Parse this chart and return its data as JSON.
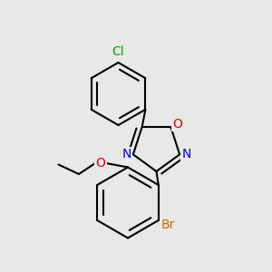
{
  "background_color": "#e8e8e8",
  "bond_color": "#000000",
  "bond_width": 1.5,
  "atom_colors": {
    "Cl": "#00aa00",
    "O": "#dd0000",
    "N": "#0000cc",
    "Br": "#cc6600",
    "C": "#000000"
  },
  "font_size_atoms": 10,
  "figsize": [
    3.0,
    3.0
  ],
  "dpi": 100,
  "xlim": [
    0.0,
    1.0
  ],
  "ylim": [
    0.0,
    1.0
  ]
}
